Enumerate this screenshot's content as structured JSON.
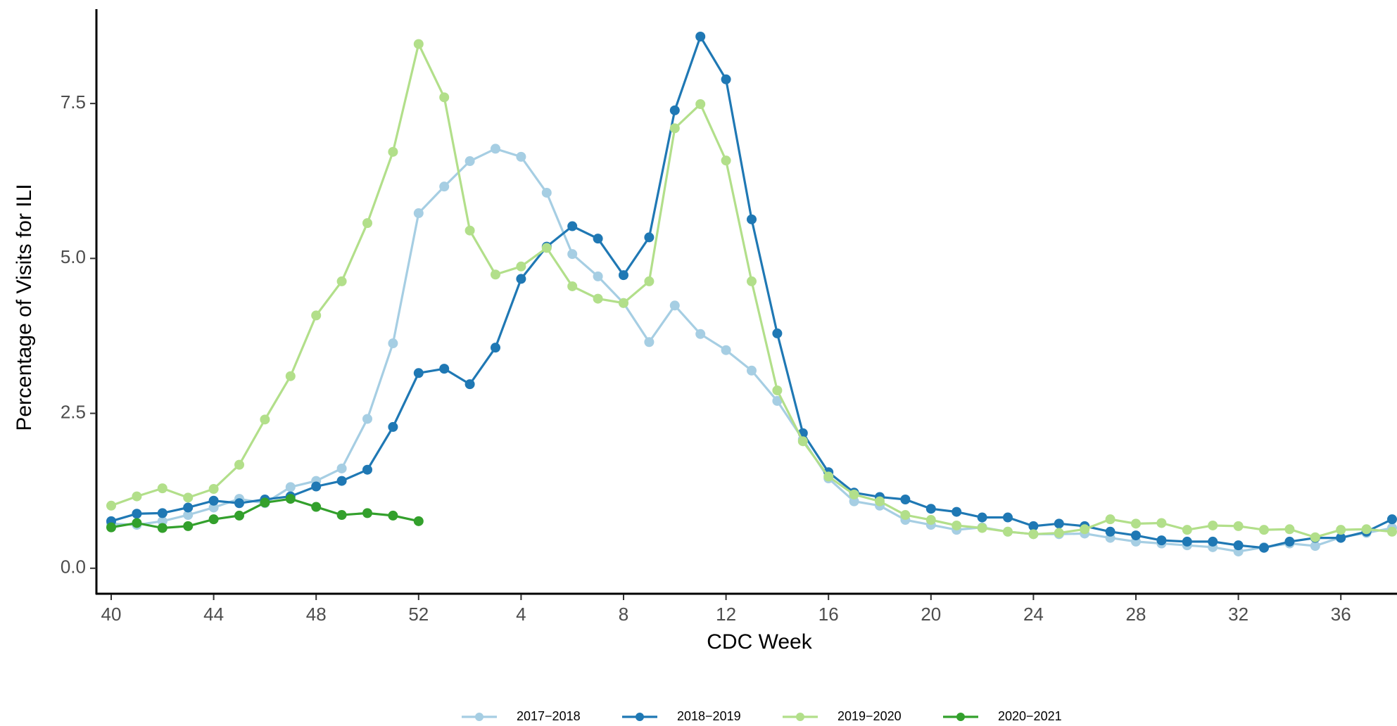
{
  "chart_data": {
    "type": "line",
    "x_label": "CDC Week",
    "y_label": "Percentage of Visits for ILI",
    "categories": [
      "40",
      null,
      null,
      null,
      "44",
      null,
      null,
      null,
      "48",
      null,
      null,
      null,
      "52",
      null,
      null,
      null,
      "4",
      null,
      null,
      null,
      "8",
      null,
      null,
      null,
      "12",
      null,
      null,
      null,
      "16",
      null,
      null,
      null,
      "20",
      null,
      null,
      null,
      "24",
      null,
      null,
      null,
      "28",
      null,
      null,
      null,
      "32",
      null,
      null,
      null,
      "36",
      null,
      null
    ],
    "ylim": [
      -0.4,
      9.0
    ],
    "yticks": [
      {
        "value": 0,
        "label": "0.0"
      },
      {
        "value": 2.5,
        "label": "2.5"
      },
      {
        "value": 5,
        "label": "5.0"
      },
      {
        "value": 7.5,
        "label": "7.5"
      }
    ],
    "grid": false,
    "legend": "bottom",
    "series": [
      {
        "name": "2017−2018",
        "color": "#a6cee3",
        "values": [
          0.72,
          0.7,
          0.76,
          0.86,
          0.98,
          1.12,
          1.05,
          1.31,
          1.41,
          1.61,
          2.41,
          3.63,
          5.73,
          6.16,
          6.57,
          6.77,
          6.64,
          6.06,
          5.07,
          4.71,
          4.28,
          3.65,
          4.24,
          3.78,
          3.52,
          3.19,
          2.7,
          2.08,
          1.45,
          1.08,
          1.01,
          0.78,
          0.7,
          0.62,
          0.66,
          0.59,
          0.55,
          0.55,
          0.56,
          0.49,
          0.43,
          0.4,
          0.37,
          0.34,
          0.27,
          0.34,
          0.4,
          0.36,
          0.5,
          0.57,
          0.65
        ]
      },
      {
        "name": "2018−2019",
        "color": "#1f78b4",
        "values": [
          0.76,
          0.88,
          0.89,
          0.98,
          1.09,
          1.05,
          1.11,
          1.16,
          1.32,
          1.41,
          1.59,
          2.28,
          3.15,
          3.22,
          2.97,
          3.56,
          4.67,
          5.19,
          5.52,
          5.32,
          4.73,
          5.34,
          7.39,
          8.58,
          7.89,
          5.63,
          3.79,
          2.18,
          1.55,
          1.22,
          1.15,
          1.11,
          0.96,
          0.91,
          0.82,
          0.82,
          0.68,
          0.72,
          0.68,
          0.59,
          0.53,
          0.45,
          0.43,
          0.43,
          0.37,
          0.33,
          0.43,
          0.49,
          0.49,
          0.59,
          0.79
        ]
      },
      {
        "name": "2019−2020",
        "color": "#b2df8a",
        "values": [
          1.01,
          1.16,
          1.29,
          1.14,
          1.28,
          1.67,
          2.4,
          3.1,
          4.08,
          4.63,
          5.57,
          6.72,
          8.46,
          7.6,
          5.45,
          4.74,
          4.87,
          5.17,
          4.55,
          4.35,
          4.28,
          4.63,
          7.1,
          7.49,
          6.58,
          4.63,
          2.87,
          2.05,
          1.48,
          1.19,
          1.08,
          0.86,
          0.78,
          0.69,
          0.65,
          0.59,
          0.55,
          0.57,
          0.63,
          0.79,
          0.72,
          0.73,
          0.62,
          0.69,
          0.68,
          0.62,
          0.63,
          0.5,
          0.62,
          0.63,
          0.59
        ]
      },
      {
        "name": "2020−2021",
        "color": "#33a02c",
        "values": [
          0.66,
          0.73,
          0.65,
          0.68,
          0.79,
          0.85,
          1.06,
          1.12,
          0.99,
          0.86,
          0.89,
          0.85,
          0.76,
          null,
          null,
          null,
          null,
          null,
          null,
          null,
          null,
          null,
          null,
          null,
          null,
          null,
          null,
          null,
          null,
          null,
          null,
          null,
          null,
          null,
          null,
          null,
          null,
          null,
          null,
          null,
          null,
          null,
          null,
          null,
          null,
          null,
          null,
          null,
          null,
          null,
          null
        ]
      }
    ]
  }
}
